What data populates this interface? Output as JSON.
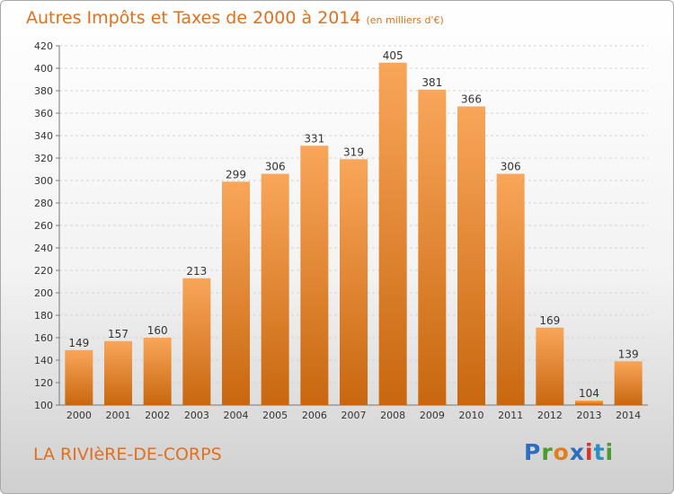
{
  "header": {
    "title": "Autres Impôts et Taxes de 2000 à 2014",
    "unit": "(en milliers d'€)"
  },
  "footer": {
    "city": "LA RIVIèRE-DE-CORPS",
    "logo": "Proxiti"
  },
  "colors": {
    "bar_top": "#f9a65a",
    "bar_bottom": "#c8670f",
    "text": "#e0701f",
    "logo_letters": [
      "#2a6fc2",
      "#4a9b2f",
      "#e07f1d",
      "#2a6fc2",
      "#d8322b",
      "#2a8fc2",
      "#4a9b2f"
    ]
  },
  "chart_data": {
    "type": "bar",
    "title": "Autres Impôts et Taxes de 2000 à 2014",
    "subtitle": "(en milliers d'€)",
    "categories": [
      "2000",
      "2001",
      "2002",
      "2003",
      "2004",
      "2005",
      "2006",
      "2007",
      "2008",
      "2009",
      "2010",
      "2011",
      "2012",
      "2013",
      "2014"
    ],
    "values": [
      149,
      157,
      160,
      213,
      299,
      306,
      331,
      319,
      405,
      381,
      366,
      306,
      169,
      104,
      139
    ],
    "ylim": [
      100,
      420
    ],
    "yticks": [
      100,
      120,
      140,
      160,
      180,
      200,
      220,
      240,
      260,
      280,
      300,
      320,
      340,
      360,
      380,
      400,
      420
    ],
    "grid": true,
    "legend": "none"
  }
}
